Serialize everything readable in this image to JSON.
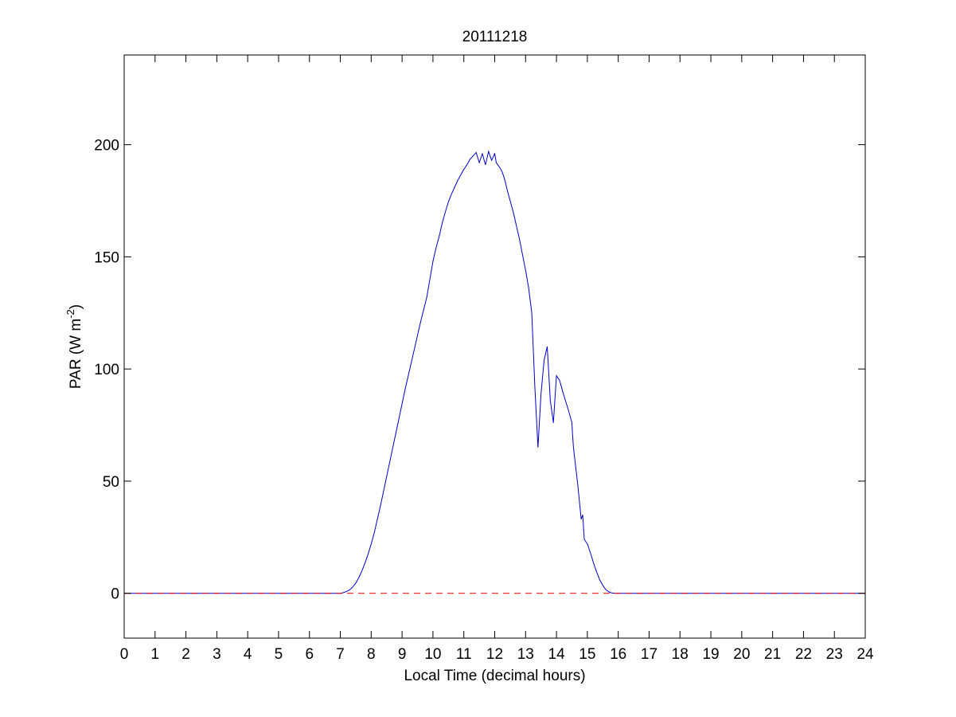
{
  "chart_data": {
    "type": "line",
    "title": "20111218",
    "xlabel": "Local Time (decimal hours)",
    "ylabel": {
      "main": "PAR (W m",
      "superscript": "-2",
      "close": ")"
    },
    "xlim": [
      0,
      24
    ],
    "ylim": [
      -20,
      240
    ],
    "x_ticks": [
      0,
      1,
      2,
      3,
      4,
      5,
      6,
      7,
      8,
      9,
      10,
      11,
      12,
      13,
      14,
      15,
      16,
      17,
      18,
      19,
      20,
      21,
      22,
      23,
      24
    ],
    "y_ticks": [
      0,
      50,
      100,
      150,
      200
    ],
    "grid": false,
    "series": [
      {
        "style": "solid",
        "color": "#0000c8",
        "x": [
          0,
          7.0,
          7.1,
          7.2,
          7.3,
          7.4,
          7.5,
          7.6,
          7.7,
          7.8,
          7.9,
          8.0,
          8.1,
          8.2,
          8.3,
          8.4,
          8.5,
          8.6,
          8.7,
          8.8,
          8.9,
          9.0,
          9.1,
          9.2,
          9.3,
          9.4,
          9.5,
          9.6,
          9.7,
          9.8,
          9.9,
          10.0,
          10.1,
          10.2,
          10.3,
          10.4,
          10.5,
          10.6,
          10.7,
          10.8,
          10.9,
          11.0,
          11.1,
          11.2,
          11.3,
          11.4,
          11.5,
          11.6,
          11.7,
          11.8,
          11.9,
          12.0,
          12.05,
          12.1,
          12.15,
          12.2,
          12.25,
          12.3,
          12.35,
          12.4,
          12.5,
          12.6,
          12.7,
          12.8,
          12.9,
          13.0,
          13.1,
          13.2,
          13.3,
          13.4,
          13.5,
          13.6,
          13.7,
          13.8,
          13.9,
          14.0,
          14.1,
          14.2,
          14.3,
          14.4,
          14.5,
          14.52,
          14.55,
          14.6,
          14.65,
          14.7,
          14.75,
          14.8,
          14.85,
          14.9,
          15.0,
          15.1,
          15.2,
          15.3,
          15.4,
          15.5,
          15.6,
          15.7,
          15.8,
          15.9,
          15.95,
          16.0,
          16.05,
          16.1,
          16.15,
          16.2,
          16.3,
          16.4,
          16.5,
          16.6,
          16.7,
          16.8,
          16.9,
          17.0,
          17.1,
          17.2,
          17.3,
          24
        ],
        "y": [
          0,
          0,
          0.3,
          0.8,
          1.5,
          2.8,
          4.5,
          7,
          10,
          13.5,
          17.5,
          22,
          27,
          33,
          39,
          45.5,
          52,
          58.5,
          65,
          71.5,
          78,
          84.5,
          91,
          97,
          103,
          109,
          115,
          121,
          126.5,
          132,
          140,
          148,
          154,
          159,
          165,
          170,
          174.5,
          178,
          181,
          184,
          186.5,
          189,
          191,
          193.5,
          195,
          196.5,
          192,
          196,
          191,
          197,
          193,
          196,
          192,
          191,
          190,
          189,
          187.5,
          185.5,
          183,
          180,
          175,
          170,
          164,
          158,
          151,
          144,
          136,
          125,
          92,
          65,
          89,
          104,
          110,
          86,
          76,
          97,
          95,
          90,
          85.5,
          81,
          76,
          71,
          65,
          59,
          53,
          47,
          40,
          33,
          35,
          24,
          22,
          18,
          13.5,
          9.5,
          6,
          3.5,
          1.6,
          0.6,
          0.1,
          0,
          0,
          0,
          0,
          0,
          0,
          0,
          0,
          0,
          0,
          0,
          0,
          0,
          0,
          0,
          0,
          0,
          0,
          0
        ],
        "x2": [],
        "y2": []
      },
      {
        "style": "dashed",
        "color": "#e00000",
        "x": [
          0,
          24
        ],
        "y": [
          0,
          0
        ]
      }
    ]
  }
}
